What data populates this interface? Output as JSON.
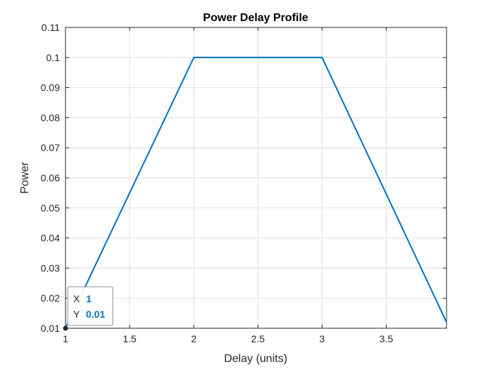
{
  "chart_data": {
    "type": "line",
    "title": "Power Delay Profile",
    "xlabel": "Delay (units)",
    "ylabel": "Power",
    "xlim": [
      1,
      3.97
    ],
    "ylim": [
      0.01,
      0.11
    ],
    "xticks": [
      "1",
      "1.5",
      "2",
      "2.5",
      "3",
      "3.5"
    ],
    "xtick_values": [
      1,
      1.5,
      2,
      2.5,
      3,
      3.5
    ],
    "yticks": [
      "0.01",
      "0.02",
      "0.03",
      "0.04",
      "0.05",
      "0.06",
      "0.07",
      "0.08",
      "0.09",
      "0.1",
      "0.11"
    ],
    "ytick_values": [
      0.01,
      0.02,
      0.03,
      0.04,
      0.05,
      0.06,
      0.07,
      0.08,
      0.09,
      0.1,
      0.11
    ],
    "grid": true,
    "series": [
      {
        "x": [
          1,
          2,
          3,
          3.97
        ],
        "y": [
          0.01,
          0.1,
          0.1,
          0.012
        ],
        "color": "#0072BD"
      }
    ],
    "datatip": {
      "x_label": "X",
      "x_value": "1",
      "y_label": "Y",
      "y_value": "0.01",
      "point": [
        1,
        0.01
      ]
    }
  }
}
